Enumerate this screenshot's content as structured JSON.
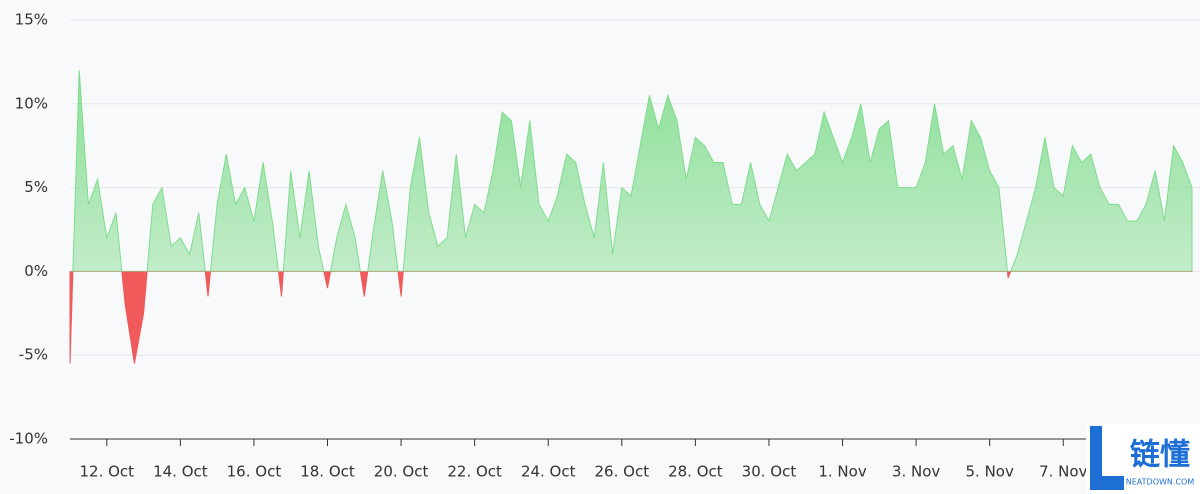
{
  "chart_data": {
    "type": "area",
    "categories": [
      null,
      null,
      null,
      null,
      "12. Oct",
      null,
      null,
      null,
      null,
      null,
      null,
      null,
      "14. Oct",
      null,
      null,
      null,
      null,
      null,
      null,
      null,
      "16. Oct",
      null,
      null,
      null,
      null,
      null,
      null,
      null,
      "18. Oct",
      null,
      null,
      null,
      null,
      null,
      null,
      null,
      "20. Oct",
      null,
      null,
      null,
      null,
      null,
      null,
      null,
      "22. Oct",
      null,
      null,
      null,
      null,
      null,
      null,
      null,
      "24. Oct",
      null,
      null,
      null,
      null,
      null,
      null,
      null,
      "26. Oct",
      null,
      null,
      null,
      null,
      null,
      null,
      null,
      "28. Oct",
      null,
      null,
      null,
      null,
      null,
      null,
      null,
      "30. Oct",
      null,
      null,
      null,
      null,
      null,
      null,
      null,
      "1. Nov",
      null,
      null,
      null,
      null,
      null,
      null,
      null,
      "3. Nov",
      null,
      null,
      null,
      null,
      null,
      null,
      null,
      "5. Nov",
      null,
      null,
      null,
      null,
      null,
      null,
      null,
      "7. Nov",
      null,
      null,
      null,
      null,
      null,
      null,
      null,
      null,
      null,
      null,
      null,
      null,
      null,
      null
    ],
    "values": [
      -5.5,
      12,
      4,
      5.5,
      2,
      3.5,
      -2,
      -5.5,
      -2.5,
      4,
      5,
      1.5,
      2,
      1,
      3.5,
      -1.5,
      4,
      7,
      4,
      5,
      3,
      6.5,
      3,
      -1.5,
      6,
      2,
      6,
      1.5,
      -1,
      2,
      4,
      2,
      -1.5,
      2.5,
      6,
      3,
      -1.5,
      5,
      8,
      3.5,
      1.5,
      2,
      7,
      2,
      4,
      3.5,
      6,
      9.5,
      9,
      5,
      9,
      4,
      3,
      4.5,
      7,
      6.5,
      4,
      2,
      6.5,
      1,
      5,
      4.5,
      7.5,
      10.5,
      8.5,
      10.5,
      9,
      5.5,
      8,
      7.5,
      6.5,
      6.5,
      4,
      4,
      6.5,
      4,
      3,
      5,
      7,
      6,
      6.5,
      7,
      9.5,
      8,
      6.5,
      8,
      10,
      6.5,
      8.5,
      9,
      5,
      5,
      5,
      6.5,
      10,
      7,
      7.5,
      5.5,
      9,
      8,
      6,
      5,
      -0.4,
      1,
      3,
      5,
      8,
      5,
      4.5,
      7.5,
      6.5,
      7,
      5,
      4,
      4,
      3,
      3,
      4,
      6,
      3,
      7.5,
      6.5,
      5
    ],
    "ylim": [
      -10,
      15
    ],
    "yticks": [
      {
        "value": -10,
        "label": "-10%"
      },
      {
        "value": -5,
        "label": "-5%"
      },
      {
        "value": 0,
        "label": "0%"
      },
      {
        "value": 5,
        "label": "5%"
      },
      {
        "value": 10,
        "label": "10%"
      },
      {
        "value": 15,
        "label": "15%"
      }
    ],
    "grid": true,
    "positive_color": "#7fdc8c",
    "negative_color": "#f05a5a",
    "watermark": {
      "text": "链懂",
      "subtext": "NEATDOWN.COM"
    }
  }
}
